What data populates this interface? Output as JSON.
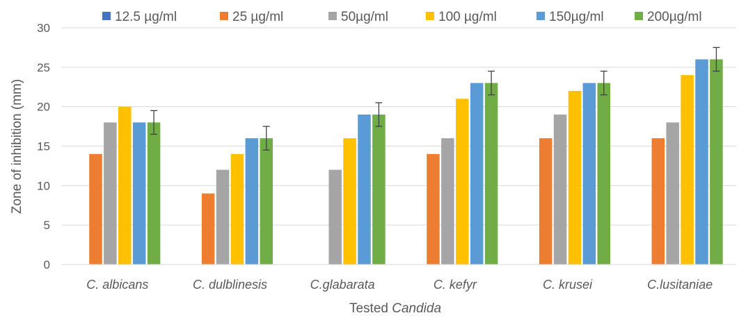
{
  "chart_data": {
    "type": "bar",
    "title": "",
    "xlabel_prefix": "Tested ",
    "xlabel_italic": "Candida",
    "ylabel": "Zone of inhibition (mm)",
    "ylim": [
      0,
      30
    ],
    "yticks": [
      "0",
      "5",
      "10",
      "15",
      "20",
      "25",
      "30"
    ],
    "grid": true,
    "legend_position": "top",
    "categories": [
      "C. albicans",
      "C. dulblinesis",
      "C.glabarata",
      "C. kefyr",
      "C. krusei",
      "C.lusitaniae"
    ],
    "series": [
      {
        "name": "12.5 µg/ml",
        "color": "#4472C4",
        "values": [
          0,
          0,
          0,
          0,
          0,
          0
        ]
      },
      {
        "name": "25 µg/ml",
        "color": "#ED7D31",
        "values": [
          14,
          9,
          0,
          14,
          16,
          16
        ]
      },
      {
        "name": "50µg/ml",
        "color": "#A5A5A5",
        "values": [
          18,
          12,
          12,
          16,
          19,
          18
        ]
      },
      {
        "name": "100 µg/ml",
        "color": "#FFC000",
        "values": [
          20,
          14,
          16,
          21,
          22,
          24
        ]
      },
      {
        "name": "150µg/ml",
        "color": "#5B9BD5",
        "values": [
          18,
          16,
          19,
          23,
          23,
          26
        ]
      },
      {
        "name": "200µg/ml",
        "color": "#70AD47",
        "values": [
          18,
          16,
          19,
          23,
          23,
          26
        ],
        "error": [
          1.5,
          1.5,
          1.5,
          1.5,
          1.5,
          1.5
        ]
      }
    ]
  }
}
